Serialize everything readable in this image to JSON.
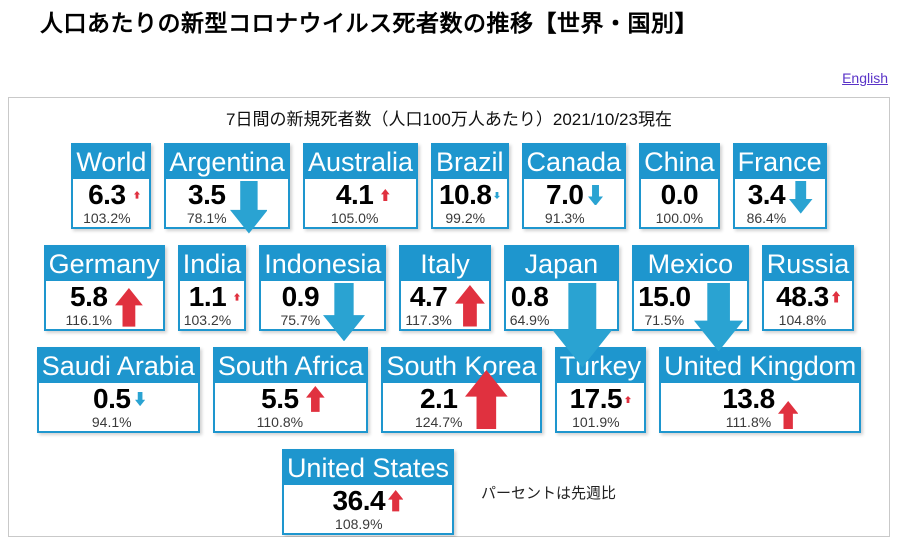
{
  "page": {
    "title": "人口あたりの新型コロナウイルス死者数の推移【世界・国別】",
    "english_link": "English",
    "subtitle": "7日間の新規死者数（人口100万人あたり）2021/10/23現在",
    "note": "パーセントは先週比"
  },
  "colors": {
    "accent_blue": "#1E96CE",
    "arrow_up_red": "#E0313F",
    "arrow_down_blue": "#2AA3D2"
  },
  "chart_data": {
    "type": "table",
    "title": "7日間の新規死者数（人口100万人あたり）2021/10/23現在",
    "value_label": "deaths per 1M population (7 days)",
    "pct_label": "percent vs previous week",
    "rows": [
      [
        {
          "name": "World",
          "value": "6.3",
          "pct": "103.2%"
        },
        {
          "name": "Argentina",
          "value": "3.5",
          "pct": "78.1%"
        },
        {
          "name": "Australia",
          "value": "4.1",
          "pct": "105.0%"
        },
        {
          "name": "Brazil",
          "value": "10.8",
          "pct": "99.2%"
        },
        {
          "name": "Canada",
          "value": "7.0",
          "pct": "91.3%"
        },
        {
          "name": "China",
          "value": "0.0",
          "pct": "100.0%"
        },
        {
          "name": "France",
          "value": "3.4",
          "pct": "86.4%"
        }
      ],
      [
        {
          "name": "Germany",
          "value": "5.8",
          "pct": "116.1%"
        },
        {
          "name": "India",
          "value": "1.1",
          "pct": "103.2%"
        },
        {
          "name": "Indonesia",
          "value": "0.9",
          "pct": "75.7%"
        },
        {
          "name": "Italy",
          "value": "4.7",
          "pct": "117.3%"
        },
        {
          "name": "Japan",
          "value": "0.8",
          "pct": "64.9%"
        },
        {
          "name": "Mexico",
          "value": "15.0",
          "pct": "71.5%"
        },
        {
          "name": "Russia",
          "value": "48.3",
          "pct": "104.8%"
        }
      ],
      [
        {
          "name": "Saudi Arabia",
          "value": "0.5",
          "pct": "94.1%"
        },
        {
          "name": "South Africa",
          "value": "5.5",
          "pct": "110.8%"
        },
        {
          "name": "South Korea",
          "value": "2.1",
          "pct": "124.7%"
        },
        {
          "name": "Turkey",
          "value": "17.5",
          "pct": "101.9%"
        },
        {
          "name": "United Kingdom",
          "value": "13.8",
          "pct": "111.8%"
        }
      ],
      [
        {
          "name": "United States",
          "value": "36.4",
          "pct": "108.9%"
        }
      ]
    ]
  }
}
